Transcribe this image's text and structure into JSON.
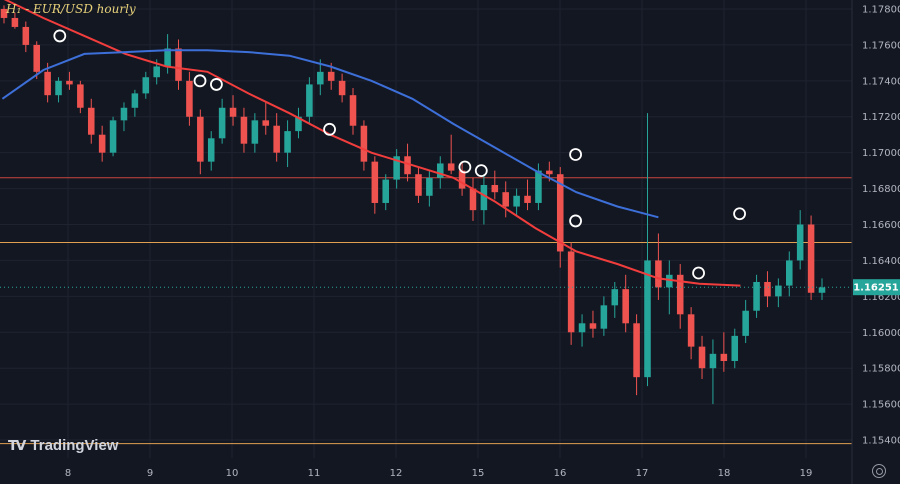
{
  "chart_data": {
    "type": "candlestick",
    "title": "H₁ - EUR/USD hourly",
    "y_range": [
      1.153,
      1.1785
    ],
    "y_ticks": [
      "1.17800",
      "1.17600",
      "1.17400",
      "1.17200",
      "1.17000",
      "1.16800",
      "1.16600",
      "1.16400",
      "1.16200",
      "1.16000",
      "1.15800",
      "1.15600",
      "1.15400"
    ],
    "x_ticks": [
      "8",
      "9",
      "10",
      "11",
      "12",
      "15",
      "16",
      "17",
      "18",
      "19"
    ],
    "last_price": "1.16251",
    "horizontal_levels": [
      {
        "value": 1.1686,
        "color": "#c9473f"
      },
      {
        "value": 1.165,
        "color": "#e0a050"
      },
      {
        "value": 1.1538,
        "color": "#e0a050"
      }
    ],
    "series": [
      {
        "kind": "moving-average",
        "color": "#f23d3d",
        "points": [
          [
            0,
            1.1786
          ],
          [
            0.5,
            1.1775
          ],
          [
            1,
            1.1765
          ],
          [
            1.5,
            1.1755
          ],
          [
            2,
            1.1748
          ],
          [
            2.5,
            1.1745
          ],
          [
            3,
            1.1733
          ],
          [
            3.5,
            1.1722
          ],
          [
            4,
            1.171
          ],
          [
            4.5,
            1.17
          ],
          [
            5,
            1.1693
          ],
          [
            5.5,
            1.1686
          ],
          [
            6,
            1.1673
          ],
          [
            6.5,
            1.1658
          ],
          [
            7,
            1.1645
          ],
          [
            7.5,
            1.1638
          ],
          [
            8,
            1.163
          ],
          [
            8.5,
            1.1627
          ],
          [
            9,
            1.1626
          ]
        ]
      },
      {
        "kind": "moving-average",
        "color": "#3d6fd9",
        "points": [
          [
            0,
            1.173
          ],
          [
            0.5,
            1.1746
          ],
          [
            1,
            1.1755
          ],
          [
            1.5,
            1.1756
          ],
          [
            2,
            1.1757
          ],
          [
            2.5,
            1.1757
          ],
          [
            3,
            1.1756
          ],
          [
            3.5,
            1.1754
          ],
          [
            4,
            1.1748
          ],
          [
            4.5,
            1.174
          ],
          [
            5,
            1.173
          ],
          [
            5.5,
            1.1716
          ],
          [
            6,
            1.1703
          ],
          [
            6.5,
            1.169
          ],
          [
            7,
            1.1678
          ],
          [
            7.5,
            1.167
          ],
          [
            8,
            1.1664
          ]
        ]
      }
    ],
    "markers": [
      [
        0.66,
        1.1765
      ],
      [
        2.37,
        1.174
      ],
      [
        2.57,
        1.1738
      ],
      [
        3.95,
        1.1713
      ],
      [
        5.6,
        1.1692
      ],
      [
        5.8,
        1.169
      ],
      [
        6.95,
        1.1699
      ],
      [
        6.95,
        1.1662
      ],
      [
        8.45,
        1.1633
      ],
      [
        8.95,
        1.1666
      ]
    ],
    "candles": [
      [
        1.178,
        1.1782,
        1.1772,
        1.1775
      ],
      [
        1.1775,
        1.1778,
        1.1769,
        1.177
      ],
      [
        1.177,
        1.1773,
        1.1756,
        1.176
      ],
      [
        1.176,
        1.1762,
        1.1741,
        1.1745
      ],
      [
        1.1745,
        1.175,
        1.1728,
        1.1732
      ],
      [
        1.1732,
        1.1742,
        1.1728,
        1.174
      ],
      [
        1.174,
        1.1745,
        1.1735,
        1.1738
      ],
      [
        1.1738,
        1.174,
        1.1722,
        1.1725
      ],
      [
        1.1725,
        1.173,
        1.1705,
        1.171
      ],
      [
        1.171,
        1.1715,
        1.1695,
        1.17
      ],
      [
        1.17,
        1.172,
        1.1698,
        1.1718
      ],
      [
        1.1718,
        1.1728,
        1.1712,
        1.1725
      ],
      [
        1.1725,
        1.1735,
        1.172,
        1.1733
      ],
      [
        1.1733,
        1.1745,
        1.173,
        1.1742
      ],
      [
        1.1742,
        1.1752,
        1.1738,
        1.1748
      ],
      [
        1.1748,
        1.1766,
        1.1744,
        1.1758
      ],
      [
        1.1758,
        1.1763,
        1.1735,
        1.174
      ],
      [
        1.174,
        1.1745,
        1.1715,
        1.172
      ],
      [
        1.172,
        1.1724,
        1.1688,
        1.1695
      ],
      [
        1.1695,
        1.1712,
        1.169,
        1.1708
      ],
      [
        1.1708,
        1.173,
        1.1705,
        1.1725
      ],
      [
        1.1725,
        1.1732,
        1.1715,
        1.172
      ],
      [
        1.172,
        1.1725,
        1.17,
        1.1705
      ],
      [
        1.1705,
        1.1722,
        1.17,
        1.1718
      ],
      [
        1.1718,
        1.1728,
        1.171,
        1.1715
      ],
      [
        1.1715,
        1.1722,
        1.1695,
        1.17
      ],
      [
        1.17,
        1.1718,
        1.1692,
        1.1712
      ],
      [
        1.1712,
        1.1725,
        1.1708,
        1.172
      ],
      [
        1.172,
        1.1742,
        1.1716,
        1.1738
      ],
      [
        1.1738,
        1.1752,
        1.1732,
        1.1745
      ],
      [
        1.1745,
        1.175,
        1.1735,
        1.174
      ],
      [
        1.174,
        1.1744,
        1.1728,
        1.1732
      ],
      [
        1.1732,
        1.1736,
        1.171,
        1.1715
      ],
      [
        1.1715,
        1.1718,
        1.169,
        1.1695
      ],
      [
        1.1695,
        1.1698,
        1.1666,
        1.1672
      ],
      [
        1.1672,
        1.1688,
        1.1668,
        1.1685
      ],
      [
        1.1685,
        1.1702,
        1.168,
        1.1698
      ],
      [
        1.1698,
        1.1705,
        1.1684,
        1.1688
      ],
      [
        1.1688,
        1.1692,
        1.1672,
        1.1676
      ],
      [
        1.1676,
        1.169,
        1.167,
        1.1686
      ],
      [
        1.1686,
        1.1698,
        1.168,
        1.1694
      ],
      [
        1.1694,
        1.171,
        1.1688,
        1.169
      ],
      [
        1.169,
        1.1695,
        1.1676,
        1.168
      ],
      [
        1.168,
        1.1686,
        1.1662,
        1.1668
      ],
      [
        1.1668,
        1.1688,
        1.166,
        1.1682
      ],
      [
        1.1682,
        1.169,
        1.1674,
        1.1678
      ],
      [
        1.1678,
        1.1684,
        1.1664,
        1.167
      ],
      [
        1.167,
        1.168,
        1.1665,
        1.1676
      ],
      [
        1.1676,
        1.1685,
        1.1668,
        1.1672
      ],
      [
        1.1672,
        1.1694,
        1.1668,
        1.169
      ],
      [
        1.169,
        1.1695,
        1.1684,
        1.1688
      ],
      [
        1.1688,
        1.1692,
        1.1636,
        1.1645
      ],
      [
        1.1645,
        1.165,
        1.1593,
        1.16
      ],
      [
        1.16,
        1.161,
        1.1592,
        1.1605
      ],
      [
        1.1605,
        1.1612,
        1.1597,
        1.1602
      ],
      [
        1.1602,
        1.162,
        1.1598,
        1.1615
      ],
      [
        1.1615,
        1.1628,
        1.1608,
        1.1624
      ],
      [
        1.1624,
        1.1632,
        1.16,
        1.1605
      ],
      [
        1.1605,
        1.161,
        1.1565,
        1.1575
      ],
      [
        1.1575,
        1.1722,
        1.157,
        1.164
      ],
      [
        1.164,
        1.1655,
        1.1618,
        1.1625
      ],
      [
        1.1625,
        1.164,
        1.161,
        1.1632
      ],
      [
        1.1632,
        1.1638,
        1.1602,
        1.161
      ],
      [
        1.161,
        1.1614,
        1.1585,
        1.1592
      ],
      [
        1.1592,
        1.1598,
        1.1574,
        1.158
      ],
      [
        1.158,
        1.1596,
        1.156,
        1.1588
      ],
      [
        1.1588,
        1.16,
        1.1578,
        1.1584
      ],
      [
        1.1584,
        1.1602,
        1.158,
        1.1598
      ],
      [
        1.1598,
        1.1618,
        1.1594,
        1.1612
      ],
      [
        1.1612,
        1.1632,
        1.1608,
        1.1628
      ],
      [
        1.1628,
        1.1634,
        1.1614,
        1.162
      ],
      [
        1.162,
        1.163,
        1.1614,
        1.1626
      ],
      [
        1.1626,
        1.1645,
        1.162,
        1.164
      ],
      [
        1.164,
        1.1668,
        1.1635,
        1.166
      ],
      [
        1.166,
        1.1665,
        1.1618,
        1.1622
      ],
      [
        1.1622,
        1.163,
        1.1618,
        1.1625
      ]
    ]
  }
}
